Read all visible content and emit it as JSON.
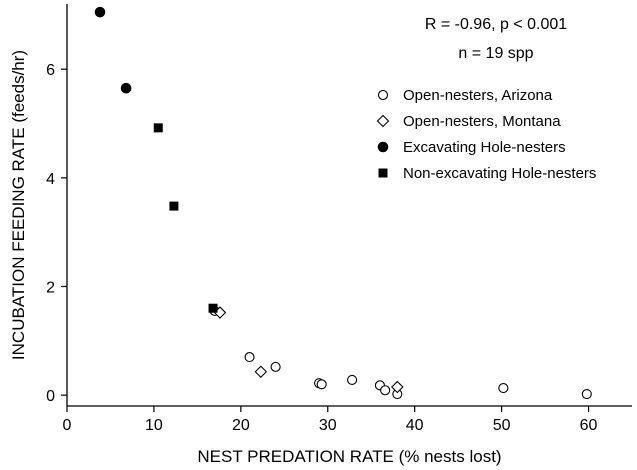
{
  "chart_data": {
    "type": "scatter",
    "title": "",
    "xlabel": "NEST PREDATION RATE (% nests lost)",
    "ylabel": "INCUBATION FEEDING RATE (feeds/hr)",
    "xlim": [
      0,
      65
    ],
    "ylim": [
      -0.2,
      7.2
    ],
    "xticks": [
      0,
      10,
      20,
      30,
      40,
      50,
      60
    ],
    "yticks": [
      0,
      2,
      4,
      6
    ],
    "grid": false,
    "legend_position": "right",
    "annotations": [
      "R = -0.96, p < 0.001",
      "n = 19 spp"
    ],
    "series": [
      {
        "name": "Open-nesters, Arizona",
        "marker": "open-circle",
        "points": [
          {
            "x": 17.0,
            "y": 1.55
          },
          {
            "x": 21.0,
            "y": 0.7
          },
          {
            "x": 24.0,
            "y": 0.52
          },
          {
            "x": 29.0,
            "y": 0.22
          },
          {
            "x": 29.3,
            "y": 0.2
          },
          {
            "x": 32.8,
            "y": 0.28
          },
          {
            "x": 36.0,
            "y": 0.18
          },
          {
            "x": 36.6,
            "y": 0.09
          },
          {
            "x": 38.0,
            "y": 0.02
          },
          {
            "x": 50.2,
            "y": 0.13
          },
          {
            "x": 59.8,
            "y": 0.02
          }
        ]
      },
      {
        "name": "Open-nesters, Montana",
        "marker": "open-diamond",
        "points": [
          {
            "x": 17.6,
            "y": 1.52
          },
          {
            "x": 22.3,
            "y": 0.43
          },
          {
            "x": 38.0,
            "y": 0.15
          }
        ]
      },
      {
        "name": "Excavating Hole-nesters",
        "marker": "filled-circle",
        "points": [
          {
            "x": 3.8,
            "y": 7.05
          },
          {
            "x": 6.8,
            "y": 5.65
          }
        ]
      },
      {
        "name": "Non-excavating Hole-nesters",
        "marker": "filled-square",
        "points": [
          {
            "x": 10.5,
            "y": 4.92
          },
          {
            "x": 12.3,
            "y": 3.48
          },
          {
            "x": 16.8,
            "y": 1.6
          }
        ]
      }
    ]
  }
}
